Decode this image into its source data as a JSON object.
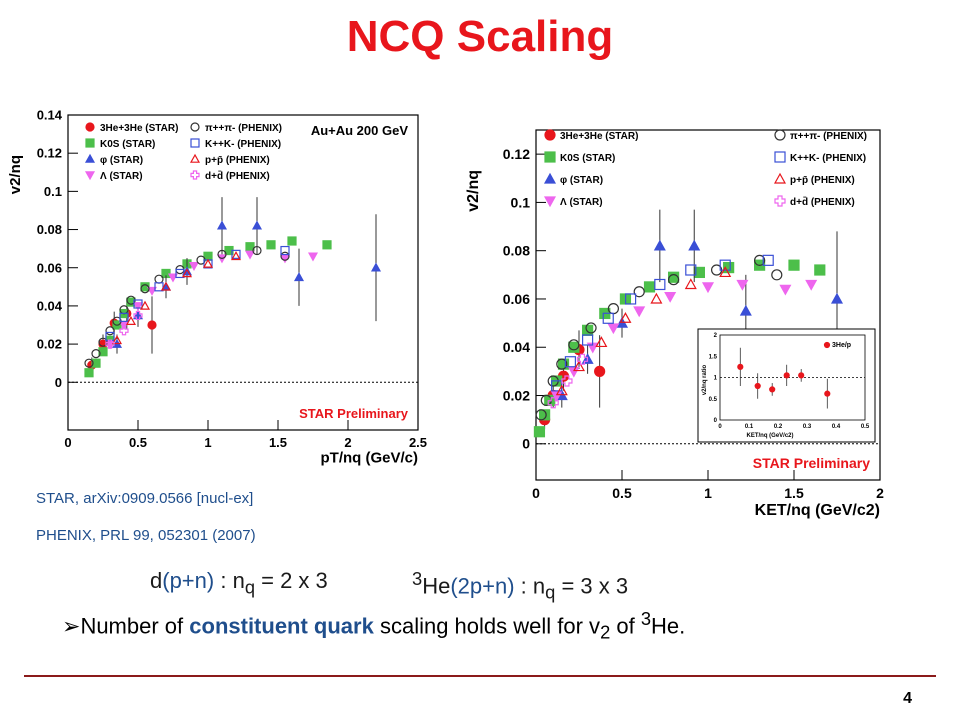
{
  "slide": {
    "title": "NCQ Scaling",
    "ref_star": "STAR, arXiv:0909.0566 [nucl-ex]",
    "ref_phenix": "PHENIX, PRL 99, 052301 (2007)",
    "page_number": "4"
  },
  "formula": {
    "d_pre": "d",
    "d_blue": "(p+n)",
    "d_mid": " : n",
    "d_sub": "q",
    "d_post": " = 2 x 3",
    "he_sup": "3",
    "he_pre": "He",
    "he_blue": "(2p+n)",
    "he_mid": " : n",
    "he_sub": "q",
    "he_post": " = 3 x 3"
  },
  "bullet": {
    "glyph": "➢",
    "pre": "Number of ",
    "emph": "constituent quark",
    "mid": " scaling holds well for v",
    "sub": "2",
    "mid2": " of ",
    "sup": "3",
    "post": "He."
  },
  "colors": {
    "title_red": "#e8161c",
    "text_blue": "#1f4e8c",
    "rule": "#8b1a1a",
    "he3_star": "#e8161c",
    "ks0_star": "#4cbf4a",
    "phi_star": "#3a4fd6",
    "lambda_star": "#ee66ee",
    "pion_phenix": "#333333",
    "kaon_phenix": "#3a4fd6",
    "proton_phenix": "#e8161c",
    "deuteron_phenix": "#ee66ee",
    "preliminary": "#e8161c"
  },
  "chart_data": [
    {
      "type": "scatter",
      "xlabel": "pT/nq (GeV/c)",
      "ylabel": "v2/nq",
      "xlim": [
        0,
        2.5
      ],
      "ylim": [
        -0.025,
        0.14
      ],
      "xticks": [
        "0",
        "0.5",
        "1",
        "1.5",
        "2",
        "2.5"
      ],
      "yticks": [
        "0",
        "0.02",
        "0.04",
        "0.06",
        "0.08",
        "0.1",
        "0.12",
        "0.14"
      ],
      "collision": "Au+Au 200 GeV",
      "preliminary": "STAR Preliminary",
      "zero_line": true,
      "legend_position": "top-left",
      "series": [
        {
          "name": "3He+3He (STAR)",
          "marker": "circle-filled",
          "color": "#e8161c",
          "points": [
            [
              0.17,
              0.009,
              0.004
            ],
            [
              0.25,
              0.02,
              0.005
            ],
            [
              0.33,
              0.031,
              0.006
            ],
            [
              0.42,
              0.036,
              0.008
            ],
            [
              0.6,
              0.03,
              0.015
            ]
          ]
        },
        {
          "name": "K0S (STAR)",
          "marker": "square-filled",
          "color": "#4cbf4a",
          "points": [
            [
              0.15,
              0.005,
              0
            ],
            [
              0.2,
              0.01,
              0
            ],
            [
              0.25,
              0.016,
              0
            ],
            [
              0.3,
              0.022,
              0
            ],
            [
              0.35,
              0.03,
              0
            ],
            [
              0.4,
              0.036,
              0
            ],
            [
              0.45,
              0.042,
              0
            ],
            [
              0.55,
              0.05,
              0
            ],
            [
              0.7,
              0.057,
              0
            ],
            [
              0.85,
              0.062,
              0
            ],
            [
              1.0,
              0.066,
              0
            ],
            [
              1.15,
              0.069,
              0
            ],
            [
              1.3,
              0.071,
              0
            ],
            [
              1.45,
              0.072,
              0
            ],
            [
              1.6,
              0.074,
              0
            ],
            [
              1.85,
              0.072,
              0
            ]
          ]
        },
        {
          "name": "φ (STAR)",
          "marker": "triangle-up-filled",
          "color": "#3a4fd6",
          "points": [
            [
              0.35,
              0.02,
              0.005
            ],
            [
              0.5,
              0.035,
              0.006
            ],
            [
              0.7,
              0.05,
              0.006
            ],
            [
              0.85,
              0.058,
              0.007
            ],
            [
              1.1,
              0.082,
              0.015
            ],
            [
              1.35,
              0.082,
              0.015
            ],
            [
              1.65,
              0.055,
              0.015
            ],
            [
              2.2,
              0.06,
              0.028
            ]
          ]
        },
        {
          "name": "Λ (STAR)",
          "marker": "triangle-down-filled",
          "color": "#ee66ee",
          "points": [
            [
              0.3,
              0.02,
              0
            ],
            [
              0.4,
              0.03,
              0
            ],
            [
              0.5,
              0.04,
              0
            ],
            [
              0.6,
              0.048,
              0
            ],
            [
              0.75,
              0.055,
              0
            ],
            [
              0.9,
              0.061,
              0
            ],
            [
              1.1,
              0.065,
              0
            ],
            [
              1.3,
              0.067,
              0
            ],
            [
              1.55,
              0.065,
              0
            ],
            [
              1.75,
              0.066,
              0
            ]
          ]
        },
        {
          "name": "π++π- (PHENIX)",
          "marker": "circle-open",
          "color": "#333333",
          "points": [
            [
              0.15,
              0.01,
              0
            ],
            [
              0.2,
              0.015,
              0
            ],
            [
              0.25,
              0.021,
              0
            ],
            [
              0.3,
              0.027,
              0
            ],
            [
              0.35,
              0.032,
              0
            ],
            [
              0.4,
              0.038,
              0
            ],
            [
              0.45,
              0.043,
              0
            ],
            [
              0.55,
              0.049,
              0
            ],
            [
              0.65,
              0.054,
              0
            ],
            [
              0.8,
              0.059,
              0
            ],
            [
              0.95,
              0.064,
              0
            ],
            [
              1.1,
              0.067,
              0
            ],
            [
              1.35,
              0.069,
              0
            ],
            [
              1.55,
              0.066,
              0
            ]
          ]
        },
        {
          "name": "K++K- (PHENIX)",
          "marker": "square-open",
          "color": "#3a4fd6",
          "points": [
            [
              0.3,
              0.024,
              0
            ],
            [
              0.4,
              0.034,
              0
            ],
            [
              0.5,
              0.041,
              0
            ],
            [
              0.65,
              0.05,
              0
            ],
            [
              0.8,
              0.057,
              0
            ],
            [
              1.0,
              0.062,
              0
            ],
            [
              1.2,
              0.067,
              0
            ],
            [
              1.55,
              0.069,
              0
            ]
          ]
        },
        {
          "name": "p+p̄ (PHENIX)",
          "marker": "triangle-up-open",
          "color": "#e8161c",
          "points": [
            [
              0.35,
              0.022,
              0
            ],
            [
              0.45,
              0.032,
              0
            ],
            [
              0.55,
              0.04,
              0
            ],
            [
              0.7,
              0.05,
              0
            ],
            [
              0.85,
              0.057,
              0
            ],
            [
              1.0,
              0.062,
              0
            ],
            [
              1.2,
              0.066,
              0
            ]
          ]
        },
        {
          "name": "d+d̄ (PHENIX)",
          "marker": "cross-open",
          "color": "#ee66ee",
          "points": [
            [
              0.3,
              0.02,
              0
            ],
            [
              0.4,
              0.027,
              0
            ],
            [
              0.5,
              0.035,
              0
            ]
          ]
        }
      ]
    },
    {
      "type": "scatter",
      "xlabel": "KET/nq (GeV/c2)",
      "ylabel": "v2/nq",
      "xlim": [
        0,
        2
      ],
      "ylim": [
        -0.015,
        0.13
      ],
      "xticks": [
        "0",
        "0.5",
        "1",
        "1.5",
        "2"
      ],
      "yticks": [
        "0",
        "0.02",
        "0.04",
        "0.06",
        "0.08",
        "0.1",
        "0.12"
      ],
      "preliminary": "STAR Preliminary",
      "zero_line": true,
      "legend_position": "top",
      "series": [
        {
          "name": "3He+3He (STAR)",
          "marker": "circle-filled",
          "color": "#e8161c",
          "points": [
            [
              0.05,
              0.01,
              0.004
            ],
            [
              0.1,
              0.02,
              0.005
            ],
            [
              0.16,
              0.028,
              0.006
            ],
            [
              0.25,
              0.039,
              0.008
            ],
            [
              0.37,
              0.03,
              0.015
            ]
          ]
        },
        {
          "name": "K0S (STAR)",
          "marker": "square-filled",
          "color": "#4cbf4a",
          "points": [
            [
              0.02,
              0.005,
              0
            ],
            [
              0.05,
              0.012,
              0
            ],
            [
              0.08,
              0.018,
              0
            ],
            [
              0.12,
              0.026,
              0
            ],
            [
              0.16,
              0.033,
              0
            ],
            [
              0.22,
              0.04,
              0
            ],
            [
              0.3,
              0.047,
              0
            ],
            [
              0.4,
              0.054,
              0
            ],
            [
              0.52,
              0.06,
              0
            ],
            [
              0.66,
              0.065,
              0
            ],
            [
              0.8,
              0.069,
              0
            ],
            [
              0.95,
              0.071,
              0
            ],
            [
              1.12,
              0.073,
              0
            ],
            [
              1.3,
              0.074,
              0
            ],
            [
              1.5,
              0.074,
              0
            ],
            [
              1.65,
              0.072,
              0
            ]
          ]
        },
        {
          "name": "φ (STAR)",
          "marker": "triangle-up-filled",
          "color": "#3a4fd6",
          "points": [
            [
              0.15,
              0.02,
              0.005
            ],
            [
              0.3,
              0.035,
              0.006
            ],
            [
              0.5,
              0.05,
              0.006
            ],
            [
              0.72,
              0.082,
              0.015
            ],
            [
              0.92,
              0.082,
              0.015
            ],
            [
              1.22,
              0.055,
              0.015
            ],
            [
              1.75,
              0.06,
              0.028
            ]
          ]
        },
        {
          "name": "Λ (STAR)",
          "marker": "triangle-down-filled",
          "color": "#ee66ee",
          "points": [
            [
              0.12,
              0.02,
              0
            ],
            [
              0.22,
              0.03,
              0
            ],
            [
              0.33,
              0.04,
              0
            ],
            [
              0.45,
              0.048,
              0
            ],
            [
              0.6,
              0.055,
              0
            ],
            [
              0.78,
              0.061,
              0
            ],
            [
              1.0,
              0.065,
              0
            ],
            [
              1.2,
              0.066,
              0
            ],
            [
              1.45,
              0.064,
              0
            ],
            [
              1.6,
              0.066,
              0
            ]
          ]
        },
        {
          "name": "π++π- (PHENIX)",
          "marker": "circle-open",
          "color": "#333333",
          "points": [
            [
              0.03,
              0.012,
              0
            ],
            [
              0.06,
              0.018,
              0
            ],
            [
              0.1,
              0.026,
              0
            ],
            [
              0.15,
              0.033,
              0
            ],
            [
              0.22,
              0.041,
              0
            ],
            [
              0.32,
              0.048,
              0
            ],
            [
              0.45,
              0.056,
              0
            ],
            [
              0.6,
              0.063,
              0
            ],
            [
              0.8,
              0.068,
              0
            ],
            [
              1.05,
              0.072,
              0
            ],
            [
              1.3,
              0.076,
              0
            ],
            [
              1.4,
              0.07,
              0
            ]
          ]
        },
        {
          "name": "K++K- (PHENIX)",
          "marker": "square-open",
          "color": "#3a4fd6",
          "points": [
            [
              0.12,
              0.024,
              0
            ],
            [
              0.2,
              0.034,
              0
            ],
            [
              0.3,
              0.043,
              0
            ],
            [
              0.42,
              0.052,
              0
            ],
            [
              0.55,
              0.06,
              0
            ],
            [
              0.72,
              0.066,
              0
            ],
            [
              0.9,
              0.072,
              0
            ],
            [
              1.1,
              0.074,
              0
            ],
            [
              1.35,
              0.076,
              0
            ]
          ]
        },
        {
          "name": "p+p̄ (PHENIX)",
          "marker": "triangle-up-open",
          "color": "#e8161c",
          "points": [
            [
              0.15,
              0.022,
              0
            ],
            [
              0.25,
              0.032,
              0
            ],
            [
              0.38,
              0.042,
              0
            ],
            [
              0.52,
              0.052,
              0
            ],
            [
              0.7,
              0.06,
              0
            ],
            [
              0.9,
              0.066,
              0
            ],
            [
              1.1,
              0.071,
              0
            ]
          ]
        },
        {
          "name": "d+d̄ (PHENIX)",
          "marker": "cross-open",
          "color": "#ee66ee",
          "points": [
            [
              0.1,
              0.017,
              0
            ],
            [
              0.18,
              0.026,
              0
            ],
            [
              0.27,
              0.035,
              0
            ]
          ]
        }
      ],
      "inset": {
        "type": "scatter",
        "xlabel": "KET/nq (GeV/c2)",
        "ylabel": "v2/nq ratio",
        "xlim": [
          0,
          0.5
        ],
        "ylim": [
          0,
          2
        ],
        "xticks": [
          "0",
          "0.1",
          "0.2",
          "0.3",
          "0.4",
          "0.5"
        ],
        "yticks": [
          "0",
          "0.5",
          "1",
          "1.5",
          "2"
        ],
        "reference_line": 1,
        "series": [
          {
            "name": "3He/p",
            "marker": "circle-filled",
            "color": "#e8161c",
            "points": [
              [
                0.07,
                1.25,
                0.45
              ],
              [
                0.13,
                0.8,
                0.3
              ],
              [
                0.18,
                0.72,
                0.15
              ],
              [
                0.23,
                1.05,
                0.25
              ],
              [
                0.28,
                1.05,
                0.15
              ],
              [
                0.37,
                0.62,
                0.35
              ]
            ]
          }
        ]
      }
    }
  ]
}
